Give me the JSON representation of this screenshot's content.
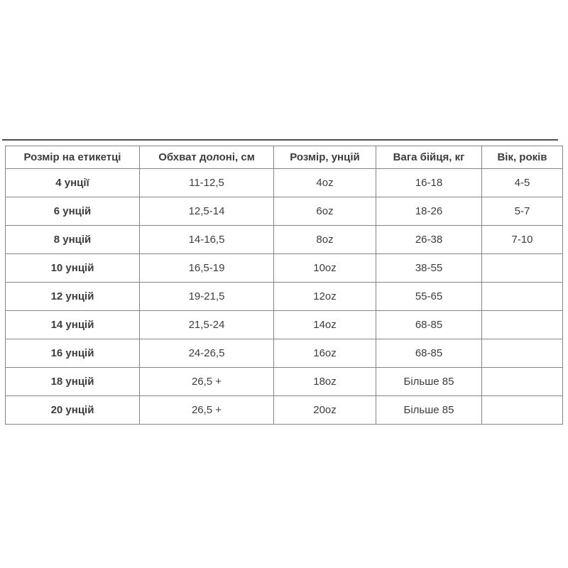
{
  "colors": {
    "table_border": "#858585",
    "table_text": "#3d3d3d",
    "divider": "#4f4f4f",
    "background": "#ffffff"
  },
  "chart_data": {
    "type": "table",
    "columns": [
      "Розмір на етикетці",
      "Обхват долоні, см",
      "Розмір, унцій",
      "Вага бійця, кг",
      "Вік, років"
    ],
    "rows": [
      [
        "4 унції",
        "11-12,5",
        "4oz",
        "16-18",
        "4-5"
      ],
      [
        "6 унцій",
        "12,5-14",
        "6oz",
        "18-26",
        "5-7"
      ],
      [
        "8 унцій",
        "14-16,5",
        "8oz",
        "26-38",
        "7-10"
      ],
      [
        "10 унцій",
        "16,5-19",
        "10oz",
        "38-55",
        ""
      ],
      [
        "12 унцій",
        "19-21,5",
        "12oz",
        "55-65",
        ""
      ],
      [
        "14 унцій",
        "21,5-24",
        "14oz",
        "68-85",
        ""
      ],
      [
        "16 унцій",
        "24-26,5",
        "16oz",
        "68-85",
        ""
      ],
      [
        "18 унцій",
        "26,5 +",
        "18oz",
        "Більше 85",
        ""
      ],
      [
        "20 унцій",
        "26,5 +",
        "20oz",
        "Більше 85",
        ""
      ]
    ]
  }
}
